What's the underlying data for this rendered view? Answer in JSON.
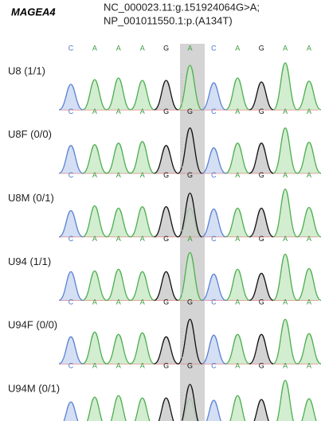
{
  "header": {
    "gene": "MAGEA4",
    "variant_lines": [
      "NC_000023.11:g.151924064G>A;",
      "NP_001011550.1:p.(A134T)"
    ]
  },
  "tracks": [
    {
      "label": "U8 (1/1)",
      "bases": [
        "C",
        "A",
        "A",
        "A",
        "G",
        "A",
        "C",
        "A",
        "G",
        "A",
        "A"
      ]
    },
    {
      "label": "U8F (0/0)",
      "bases": [
        "C",
        "A",
        "A",
        "A",
        "G",
        "G",
        "C",
        "A",
        "G",
        "A",
        "A"
      ]
    },
    {
      "label": "U8M (0/1)",
      "bases": [
        "C",
        "A",
        "A",
        "A",
        "G",
        "G",
        "C",
        "A",
        "G",
        "A",
        "A"
      ]
    },
    {
      "label": "U94 (1/1)",
      "bases": [
        "C",
        "A",
        "A",
        "A",
        "G",
        "A",
        "C",
        "A",
        "G",
        "A",
        "A"
      ]
    },
    {
      "label": "U94F (0/0)",
      "bases": [
        "C",
        "A",
        "A",
        "A",
        "G",
        "G",
        "C",
        "A",
        "G",
        "A",
        "A"
      ]
    },
    {
      "label": "U94M (0/1)",
      "bases": [
        "C",
        "A",
        "A",
        "A",
        "G",
        "G",
        "C",
        "A",
        "G",
        "A",
        "A"
      ]
    }
  ]
}
